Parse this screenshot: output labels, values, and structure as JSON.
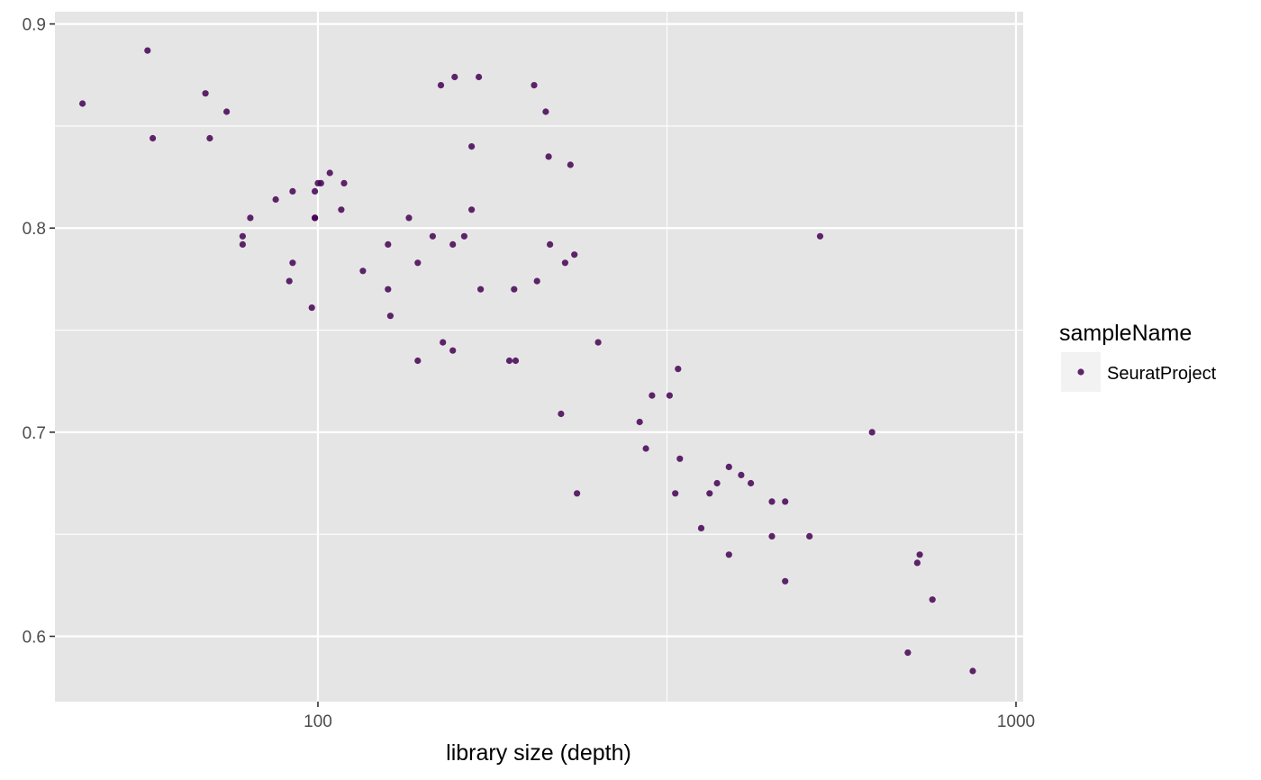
{
  "chart_data": {
    "type": "scatter",
    "xscale": "log10",
    "xlabel": "library size (depth)",
    "ylabel": "",
    "xlim": [
      42,
      1000
    ],
    "ylim": [
      0.568,
      0.906
    ],
    "x_ticks": [
      100,
      1000
    ],
    "x_tick_labels": [
      "100",
      "1000"
    ],
    "y_ticks": [
      0.6,
      0.7,
      0.8,
      0.9
    ],
    "y_tick_labels": [
      "0.6",
      "0.7",
      "0.8",
      "0.9"
    ],
    "grid": true,
    "legend": {
      "title": "sampleName",
      "position": "right"
    },
    "series": [
      {
        "name": "SeuratProject",
        "color": "#440154",
        "points": [
          [
            46,
            0.861
          ],
          [
            57,
            0.887
          ],
          [
            58,
            0.844
          ],
          [
            69,
            0.866
          ],
          [
            70,
            0.844
          ],
          [
            74,
            0.857
          ],
          [
            78,
            0.796
          ],
          [
            78,
            0.792
          ],
          [
            80,
            0.805
          ],
          [
            87,
            0.814
          ],
          [
            91,
            0.774
          ],
          [
            92,
            0.818
          ],
          [
            92,
            0.783
          ],
          [
            98,
            0.761
          ],
          [
            99,
            0.818
          ],
          [
            99,
            0.805
          ],
          [
            99,
            0.805
          ],
          [
            100,
            0.822
          ],
          [
            101,
            0.822
          ],
          [
            104,
            0.827
          ],
          [
            108,
            0.809
          ],
          [
            109,
            0.822
          ],
          [
            116,
            0.779
          ],
          [
            126,
            0.792
          ],
          [
            126,
            0.77
          ],
          [
            127,
            0.757
          ],
          [
            135,
            0.805
          ],
          [
            139,
            0.735
          ],
          [
            139,
            0.783
          ],
          [
            146,
            0.796
          ],
          [
            150,
            0.87
          ],
          [
            151,
            0.744
          ],
          [
            156,
            0.74
          ],
          [
            156,
            0.792
          ],
          [
            157,
            0.874
          ],
          [
            162,
            0.796
          ],
          [
            166,
            0.84
          ],
          [
            166,
            0.809
          ],
          [
            170,
            0.874
          ],
          [
            171,
            0.77
          ],
          [
            188,
            0.735
          ],
          [
            191,
            0.77
          ],
          [
            192,
            0.735
          ],
          [
            204,
            0.87
          ],
          [
            206,
            0.774
          ],
          [
            212,
            0.857
          ],
          [
            214,
            0.835
          ],
          [
            215,
            0.792
          ],
          [
            223,
            0.709
          ],
          [
            226,
            0.783
          ],
          [
            230,
            0.831
          ],
          [
            233,
            0.787
          ],
          [
            235,
            0.67
          ],
          [
            252,
            0.744
          ],
          [
            289,
            0.705
          ],
          [
            295,
            0.692
          ],
          [
            301,
            0.718
          ],
          [
            319,
            0.718
          ],
          [
            325,
            0.67
          ],
          [
            328,
            0.731
          ],
          [
            330,
            0.687
          ],
          [
            354,
            0.653
          ],
          [
            364,
            0.67
          ],
          [
            373,
            0.675
          ],
          [
            388,
            0.683
          ],
          [
            388,
            0.64
          ],
          [
            404,
            0.679
          ],
          [
            417,
            0.675
          ],
          [
            447,
            0.666
          ],
          [
            447,
            0.649
          ],
          [
            467,
            0.666
          ],
          [
            467,
            0.627
          ],
          [
            506,
            0.649
          ],
          [
            524,
            0.796
          ],
          [
            622,
            0.7
          ],
          [
            700,
            0.592
          ],
          [
            722,
            0.636
          ],
          [
            728,
            0.64
          ],
          [
            759,
            0.618
          ],
          [
            867,
            0.583
          ]
        ]
      }
    ]
  }
}
